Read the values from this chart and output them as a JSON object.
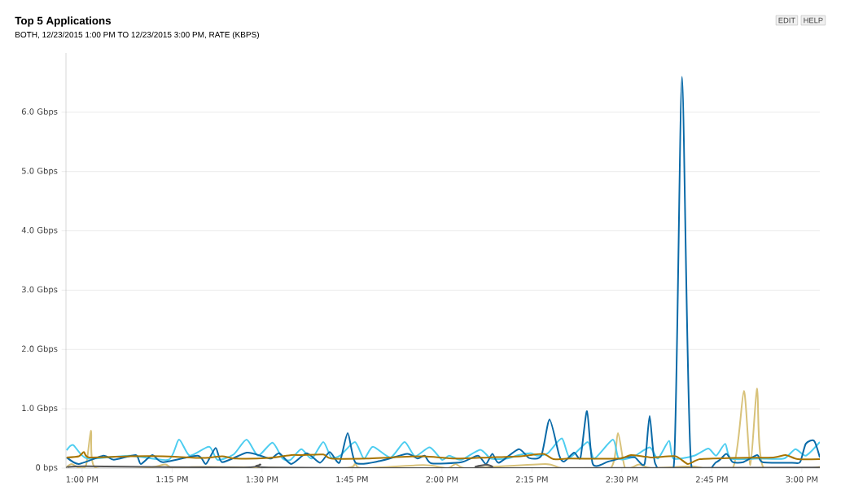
{
  "chart_data": {
    "type": "line",
    "title": "Top 5 Applications",
    "subtitle": "BOTH, 12/23/2015 1:00 PM TO 12/23/2015 3:00 PM, RATE (KBPS)",
    "annotations": [
      "EDIT",
      "HELP"
    ],
    "xlim": [
      12.955,
      15.05
    ],
    "ylim": [
      0,
      7
    ],
    "grid": "y",
    "xticks": [
      {
        "value": 13,
        "label": "1:00 PM"
      },
      {
        "value": 13.25,
        "label": "1:15 PM"
      },
      {
        "value": 13.5,
        "label": "1:30 PM"
      },
      {
        "value": 13.75,
        "label": "1:45 PM"
      },
      {
        "value": 14,
        "label": "2:00 PM"
      },
      {
        "value": 14.25,
        "label": "2:15 PM"
      },
      {
        "value": 14.5,
        "label": "2:30 PM"
      },
      {
        "value": 14.75,
        "label": "2:45 PM"
      },
      {
        "value": 15,
        "label": "3:00 PM"
      }
    ],
    "yticks": [
      {
        "value": 0,
        "label": "0 bps"
      },
      {
        "value": 1,
        "label": "1.0 Gbps"
      },
      {
        "value": 2,
        "label": "2.0 Gbps"
      },
      {
        "value": 3,
        "label": "3.0 Gbps"
      },
      {
        "value": 4,
        "label": "4.0 Gbps"
      },
      {
        "value": 5,
        "label": "5.0 Gbps"
      },
      {
        "value": 6,
        "label": "6.0 Gbps"
      }
    ],
    "series": [
      {
        "color": "#d8c27a",
        "x": [
          12.957,
          12.971,
          12.993,
          13.011,
          13.025,
          13.036,
          13.179,
          13.231,
          13.253,
          13.337,
          13.722,
          13.758,
          13.778,
          13.948,
          14.016,
          14.038,
          14.072,
          14.287,
          14.333,
          14.468,
          14.489,
          14.509,
          14.548,
          14.581,
          14.695,
          14.808,
          14.839,
          14.857,
          14.876,
          14.894,
          15.05
        ],
        "values": [
          0.02,
          0.07,
          0.0,
          0.05,
          0.63,
          0.01,
          0.0,
          0.06,
          0.0,
          0.02,
          0.0,
          0.07,
          0.0,
          0.05,
          0.0,
          0.07,
          0.0,
          0.07,
          0.0,
          0.0,
          0.59,
          0.0,
          0.06,
          0.0,
          0.03,
          0.0,
          1.3,
          0.05,
          1.34,
          0.0,
          0.02
        ]
      },
      {
        "color": "#4dcdf0",
        "x": [
          12.957,
          12.975,
          13.014,
          13.133,
          13.24,
          13.269,
          13.299,
          13.353,
          13.376,
          13.421,
          13.457,
          13.489,
          13.529,
          13.557,
          13.579,
          13.609,
          13.638,
          13.67,
          13.692,
          13.717,
          13.758,
          13.783,
          13.808,
          13.857,
          13.896,
          13.925,
          13.966,
          14.0,
          14.02,
          14.054,
          14.106,
          14.136,
          14.181,
          14.213,
          14.247,
          14.265,
          14.294,
          14.333,
          14.355,
          14.405,
          14.423,
          14.475,
          14.491,
          14.529,
          14.577,
          14.6,
          14.631,
          14.643,
          14.701,
          14.74,
          14.762,
          14.787,
          14.803,
          14.882,
          14.95,
          14.982,
          15.011,
          15.05
        ],
        "values": [
          0.3,
          0.39,
          0.16,
          0.21,
          0.14,
          0.48,
          0.21,
          0.36,
          0.14,
          0.23,
          0.48,
          0.21,
          0.43,
          0.16,
          0.14,
          0.32,
          0.16,
          0.44,
          0.18,
          0.21,
          0.44,
          0.16,
          0.36,
          0.18,
          0.44,
          0.2,
          0.35,
          0.14,
          0.21,
          0.14,
          0.31,
          0.16,
          0.16,
          0.22,
          0.25,
          0.21,
          0.25,
          0.5,
          0.18,
          0.44,
          0.16,
          0.48,
          0.16,
          0.18,
          0.35,
          0.16,
          0.46,
          0.16,
          0.21,
          0.33,
          0.21,
          0.41,
          0.16,
          0.16,
          0.16,
          0.32,
          0.21,
          0.44
        ]
      },
      {
        "color": "#0a6aa8",
        "x": [
          12.957,
          12.991,
          13.059,
          13.088,
          13.149,
          13.163,
          13.195,
          13.224,
          13.321,
          13.344,
          13.371,
          13.389,
          13.457,
          13.495,
          13.525,
          13.548,
          13.581,
          13.624,
          13.661,
          13.688,
          13.715,
          13.738,
          13.76,
          13.828,
          13.903,
          13.932,
          13.952,
          13.971,
          14.054,
          14.1,
          14.122,
          14.14,
          14.158,
          14.213,
          14.242,
          14.276,
          14.299,
          14.326,
          14.339,
          14.367,
          14.385,
          14.403,
          14.419,
          14.462,
          14.507,
          14.536,
          14.563,
          14.577,
          14.593,
          14.645,
          14.667,
          14.692,
          14.762,
          14.79,
          14.808,
          14.837,
          14.876,
          14.891,
          14.973,
          14.995,
          15.011,
          15.034,
          15.05
        ],
        "values": [
          0.18,
          0.07,
          0.21,
          0.14,
          0.22,
          0.07,
          0.22,
          0.1,
          0.21,
          0.07,
          0.34,
          0.1,
          0.26,
          0.21,
          0.16,
          0.25,
          0.07,
          0.25,
          0.09,
          0.27,
          0.09,
          0.59,
          0.09,
          0.12,
          0.24,
          0.16,
          0.21,
          0.08,
          0.1,
          0.21,
          0.07,
          0.24,
          0.09,
          0.32,
          0.17,
          0.21,
          0.82,
          0.21,
          0.11,
          0.26,
          0.18,
          0.96,
          0.07,
          0.11,
          0.18,
          0.18,
          0.07,
          0.88,
          0.07,
          0.1,
          6.6,
          0.1,
          0.1,
          0.24,
          0.1,
          0.1,
          0.22,
          0.1,
          0.09,
          0.1,
          0.41,
          0.46,
          0.18
        ]
      },
      {
        "color": "#a87400",
        "x": [
          12.957,
          12.991,
          13.005,
          13.02,
          13.133,
          13.224,
          13.337,
          13.389,
          13.428,
          13.518,
          13.581,
          13.609,
          13.67,
          13.692,
          13.79,
          13.857,
          13.948,
          14.038,
          14.129,
          14.219,
          14.281,
          14.31,
          14.355,
          14.491,
          14.525,
          14.581,
          14.649,
          14.683,
          14.717,
          14.808,
          14.921,
          14.955,
          14.989,
          15.05
        ],
        "values": [
          0.18,
          0.2,
          0.27,
          0.18,
          0.2,
          0.2,
          0.17,
          0.2,
          0.16,
          0.17,
          0.22,
          0.22,
          0.23,
          0.16,
          0.16,
          0.18,
          0.2,
          0.16,
          0.18,
          0.2,
          0.24,
          0.15,
          0.16,
          0.16,
          0.22,
          0.18,
          0.2,
          0.07,
          0.15,
          0.17,
          0.18,
          0.22,
          0.15,
          0.15
        ]
      },
      {
        "color": "#555555",
        "x": [
          12.957,
          13.009,
          13.45,
          13.495,
          13.518,
          14.106,
          14.124,
          14.143,
          15.05
        ],
        "values": [
          0.01,
          0.03,
          0.01,
          0.06,
          0.01,
          0.0,
          0.06,
          0.0,
          0.01
        ]
      }
    ]
  }
}
